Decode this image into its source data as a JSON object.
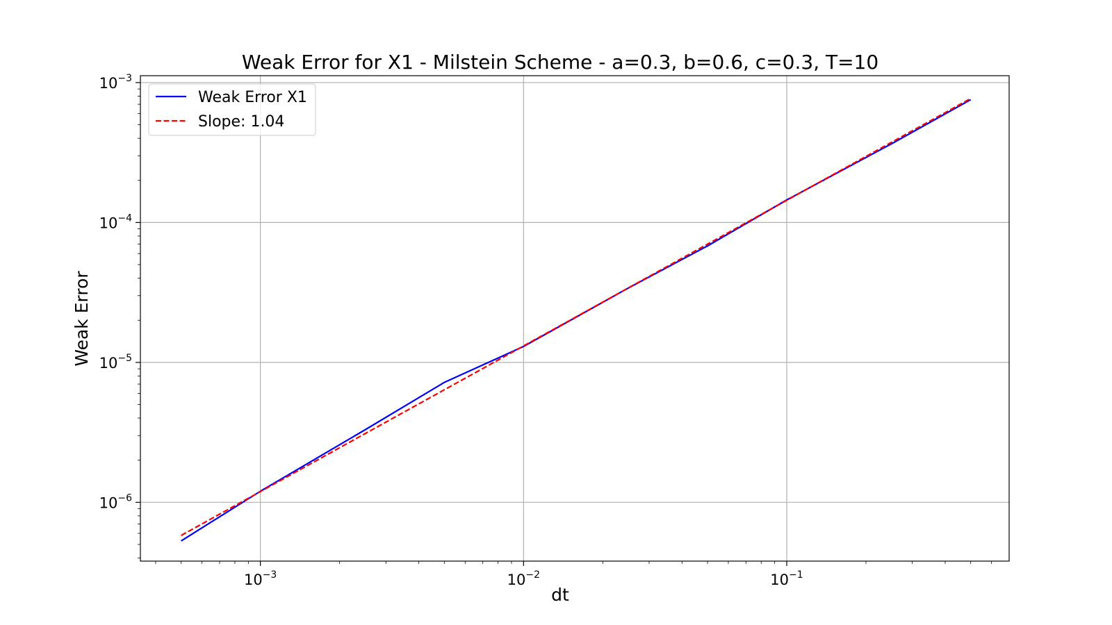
{
  "chart_data": {
    "type": "line",
    "title": "Weak Error for X1 - Milstein Scheme - a=0.3, b=0.6, c=0.3, T=10",
    "xlabel": "dt",
    "ylabel": "Weak Error",
    "xscale": "log",
    "yscale": "log",
    "xlim": [
      0.00035,
      0.7
    ],
    "ylim": [
      3.8e-07,
      0.00112
    ],
    "grid": true,
    "legend_position": "top-left",
    "x_ticks": [
      {
        "value": 0.001,
        "base": "10",
        "exp": "−3"
      },
      {
        "value": 0.01,
        "base": "10",
        "exp": "−2"
      },
      {
        "value": 0.1,
        "base": "10",
        "exp": "−1"
      }
    ],
    "y_ticks": [
      {
        "value": 1e-06,
        "base": "10",
        "exp": "−6"
      },
      {
        "value": 1e-05,
        "base": "10",
        "exp": "−5"
      },
      {
        "value": 0.0001,
        "base": "10",
        "exp": "−4"
      },
      {
        "value": 0.001,
        "base": "10",
        "exp": "−3"
      }
    ],
    "series": [
      {
        "name": "Weak Error X1",
        "color": "#0000ff",
        "style": "solid",
        "x": [
          0.0005,
          0.001,
          0.0025,
          0.005,
          0.01,
          0.025,
          0.05,
          0.1,
          0.25,
          0.5
        ],
        "y": [
          5.3e-07,
          1.2e-06,
          3.3e-06,
          7.2e-06,
          1.3e-05,
          3.4e-05,
          6.8e-05,
          0.000145,
          0.000365,
          0.000755
        ]
      },
      {
        "name": "Slope: 1.04",
        "color": "#ff0000",
        "style": "dashed",
        "x": [
          0.0005,
          0.5
        ],
        "y": [
          5.8e-07,
          0.00077
        ]
      }
    ]
  }
}
